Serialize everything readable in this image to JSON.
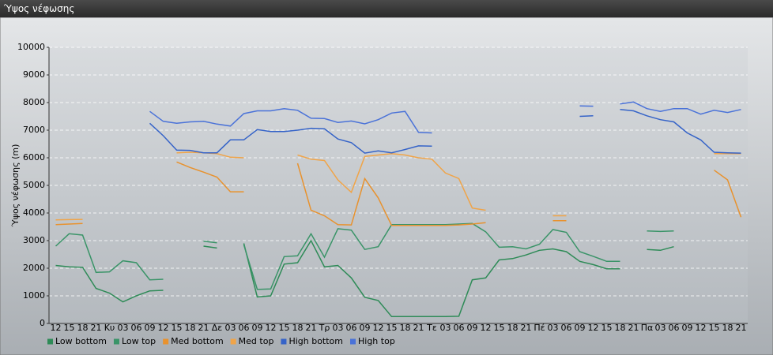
{
  "header": {
    "title": "Ύψος νέφωσης"
  },
  "chart_data": {
    "type": "line",
    "y_label": "Ύψος νέφωσης (m)",
    "categories": [
      "12",
      "15",
      "18",
      "21",
      "Κυ",
      "03",
      "06",
      "09",
      "12",
      "15",
      "18",
      "21",
      "Δε",
      "03",
      "06",
      "09",
      "12",
      "15",
      "18",
      "21",
      "Τρ",
      "03",
      "06",
      "09",
      "12",
      "15",
      "18",
      "21",
      "Τε",
      "03",
      "06",
      "09",
      "12",
      "15",
      "18",
      "21",
      "Πέ",
      "03",
      "06",
      "09",
      "12",
      "15",
      "18",
      "21",
      "Πα",
      "03",
      "06",
      "09",
      "12",
      "15",
      "18",
      "21"
    ],
    "ylim": [
      0,
      10000
    ],
    "yticks": [
      0,
      1000,
      2000,
      3000,
      4000,
      5000,
      6000,
      7000,
      8000,
      9000,
      10000
    ],
    "grid": true,
    "legend": "bottom",
    "series": [
      {
        "name": "Low bottom",
        "color": "#2e8b57",
        "values": [
          2100,
          2050,
          2030,
          1270,
          1100,
          780,
          1000,
          1180,
          1200,
          null,
          null,
          2800,
          2730,
          null,
          2900,
          960,
          1000,
          2150,
          2200,
          3000,
          2050,
          2100,
          1650,
          950,
          830,
          250,
          250,
          250,
          250,
          250,
          260,
          1580,
          1650,
          2300,
          2350,
          2480,
          2650,
          2700,
          2600,
          2250,
          2130,
          1980,
          1980,
          null,
          2680,
          2650,
          2780,
          null,
          null,
          null,
          null,
          null
        ]
      },
      {
        "name": "Low top",
        "color": "#3a9468",
        "values": [
          2800,
          3250,
          3200,
          1850,
          1870,
          2270,
          2200,
          1580,
          1600,
          null,
          null,
          2980,
          2920,
          null,
          2850,
          1230,
          1250,
          2420,
          2450,
          3250,
          2400,
          3430,
          3380,
          2680,
          2780,
          3580,
          3580,
          3580,
          3580,
          3580,
          3600,
          3620,
          3320,
          2760,
          2780,
          2700,
          2870,
          3400,
          3300,
          2600,
          2430,
          2250,
          2250,
          null,
          3350,
          3330,
          3350,
          null,
          null,
          null,
          null,
          null
        ]
      },
      {
        "name": "Med bottom",
        "color": "#e8922e",
        "values": [
          3580,
          3600,
          3620,
          null,
          null,
          null,
          null,
          null,
          null,
          5850,
          5650,
          5480,
          5300,
          4770,
          4770,
          null,
          null,
          null,
          5800,
          4100,
          3900,
          3580,
          3570,
          5250,
          4550,
          3550,
          3550,
          3550,
          3550,
          3550,
          3570,
          3600,
          3650,
          null,
          null,
          null,
          null,
          3720,
          3720,
          null,
          null,
          null,
          null,
          null,
          null,
          null,
          null,
          null,
          null,
          5550,
          5200,
          3850
        ]
      },
      {
        "name": "Med top",
        "color": "#f0a448",
        "values": [
          3750,
          3760,
          3770,
          null,
          null,
          null,
          null,
          null,
          null,
          6180,
          6200,
          6180,
          6150,
          6020,
          6000,
          null,
          null,
          null,
          6100,
          5950,
          5900,
          5200,
          4750,
          6050,
          6100,
          6150,
          6100,
          6000,
          5950,
          5450,
          5250,
          4180,
          4100,
          null,
          null,
          null,
          null,
          3900,
          3900,
          null,
          null,
          null,
          null,
          null,
          null,
          null,
          null,
          null,
          null,
          6150,
          6150,
          6150
        ]
      },
      {
        "name": "High bottom",
        "color": "#3563c8",
        "values": [
          null,
          null,
          null,
          null,
          null,
          null,
          null,
          7250,
          6800,
          6280,
          6270,
          6180,
          6180,
          6650,
          6650,
          7020,
          6950,
          6950,
          7000,
          7070,
          7050,
          6680,
          6550,
          6170,
          6250,
          6180,
          6300,
          6430,
          6420,
          null,
          null,
          null,
          null,
          null,
          null,
          null,
          null,
          null,
          null,
          7500,
          7520,
          null,
          7750,
          7700,
          7520,
          7380,
          7300,
          6900,
          6650,
          6200,
          6180,
          6170
        ]
      },
      {
        "name": "High top",
        "color": "#4a72d8",
        "values": [
          null,
          null,
          null,
          null,
          null,
          null,
          null,
          7680,
          7320,
          7250,
          7300,
          7320,
          7220,
          7150,
          7600,
          7700,
          7700,
          7780,
          7720,
          7430,
          7420,
          7280,
          7330,
          7230,
          7380,
          7620,
          7680,
          6920,
          6900,
          null,
          null,
          null,
          null,
          null,
          null,
          null,
          null,
          null,
          null,
          7880,
          7870,
          null,
          7950,
          8020,
          7780,
          7680,
          7780,
          7780,
          7580,
          7720,
          7640,
          7750
        ]
      }
    ]
  }
}
